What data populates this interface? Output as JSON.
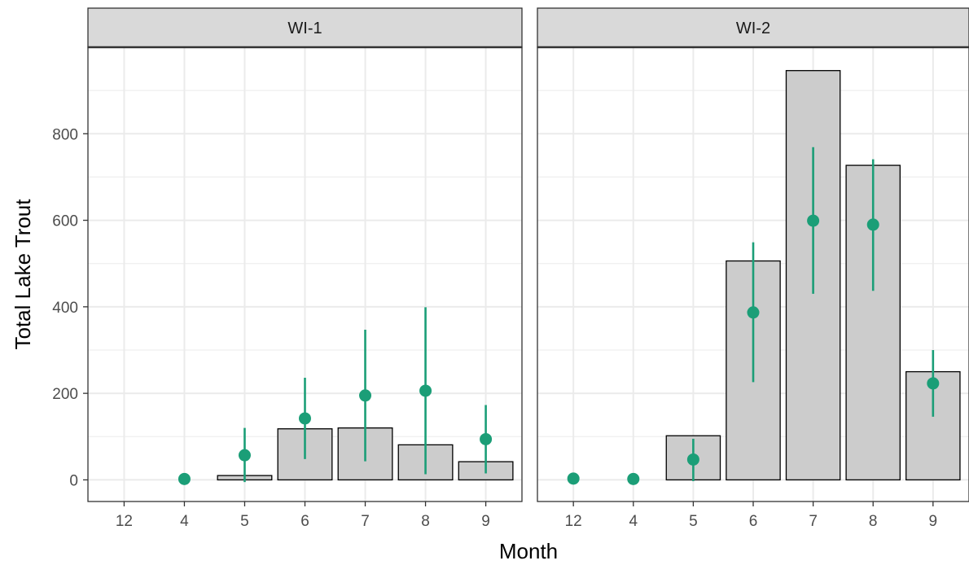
{
  "chart_data": {
    "type": "bar",
    "xlabel": "Month",
    "ylabel": "Total Lake Trout",
    "categories": [
      "12",
      "4",
      "5",
      "6",
      "7",
      "8",
      "9"
    ],
    "yticks": [
      0,
      200,
      400,
      600,
      800
    ],
    "ylim": [
      -50,
      1000
    ],
    "grid": true,
    "colors": {
      "bar_fill": "#cccccc",
      "bar_stroke": "#000000",
      "point": "#1b9e77",
      "strip_fill": "#d9d9d9",
      "grid": "#ebebeb"
    },
    "panels": [
      {
        "name": "WI-1",
        "bars": [
          null,
          null,
          10,
          118,
          120,
          81,
          42
        ],
        "points": [
          null,
          2,
          57,
          142,
          195,
          206,
          94
        ],
        "ci_low": [
          null,
          null,
          -5,
          48,
          43,
          13,
          15
        ],
        "ci_high": [
          null,
          null,
          120,
          236,
          347,
          399,
          173
        ]
      },
      {
        "name": "WI-2",
        "bars": [
          null,
          null,
          102,
          506,
          946,
          727,
          250
        ],
        "points": [
          3,
          2,
          47,
          387,
          599,
          590,
          223
        ],
        "ci_low": [
          null,
          null,
          -3,
          226,
          430,
          437,
          146
        ],
        "ci_high": [
          null,
          null,
          95,
          549,
          769,
          741,
          300
        ]
      }
    ]
  }
}
